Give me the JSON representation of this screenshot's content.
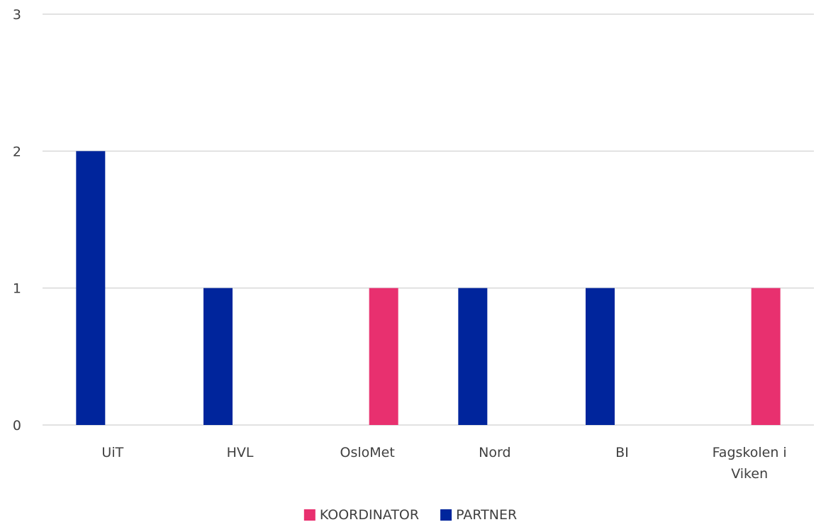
{
  "chart_data": {
    "type": "bar",
    "title": "",
    "xlabel": "",
    "ylabel": "",
    "categories": [
      [
        "UiT"
      ],
      [
        "HVL"
      ],
      [
        "OsloMet"
      ],
      [
        "Nord"
      ],
      [
        "BI"
      ],
      [
        "Fagskolen i",
        "Viken"
      ]
    ],
    "series": [
      {
        "name": "KOORDINATOR",
        "color": "#E8306F",
        "values": [
          0,
          0,
          1,
          0,
          0,
          1
        ]
      },
      {
        "name": "PARTNER",
        "color": "#00259C",
        "values": [
          2,
          1,
          0,
          1,
          1,
          0
        ]
      }
    ],
    "ylim": [
      0,
      3
    ],
    "yticks": [
      0,
      1,
      2,
      3
    ],
    "grid": true,
    "legend_position": "bottom-center",
    "gridline_color": "#D9D9D9",
    "text_color": "#404040"
  }
}
